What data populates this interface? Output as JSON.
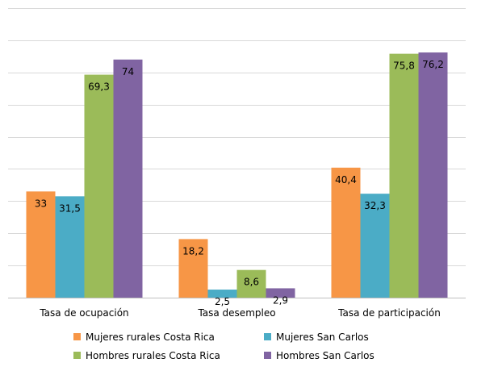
{
  "chart_data": {
    "type": "bar",
    "categories": [
      "Tasa de ocupación",
      "Tasa desempleo",
      "Tasa de participación"
    ],
    "series": [
      {
        "name": "Mujeres rurales Costa Rica",
        "color": "#F79646",
        "values": [
          33,
          18.2,
          40.4
        ],
        "labels": [
          "33",
          "18,2",
          "40,4"
        ]
      },
      {
        "name": "Mujeres San Carlos",
        "color": "#4BACC6",
        "values": [
          31.5,
          2.5,
          32.3
        ],
        "labels": [
          "31,5",
          "2,5",
          "32,3"
        ]
      },
      {
        "name": "Hombres rurales Costa Rica",
        "color": "#9BBB59",
        "values": [
          69.3,
          8.6,
          75.8
        ],
        "labels": [
          "69,3",
          "8,6",
          "75,8"
        ]
      },
      {
        "name": "Hombres San Carlos",
        "color": "#8064A2",
        "values": [
          74,
          2.9,
          76.2
        ],
        "labels": [
          "74",
          "2,9",
          "76,2"
        ]
      }
    ],
    "ylim": [
      0,
      90
    ],
    "grid": true,
    "legend_position": "bottom",
    "title": "",
    "xlabel": "",
    "ylabel": ""
  }
}
